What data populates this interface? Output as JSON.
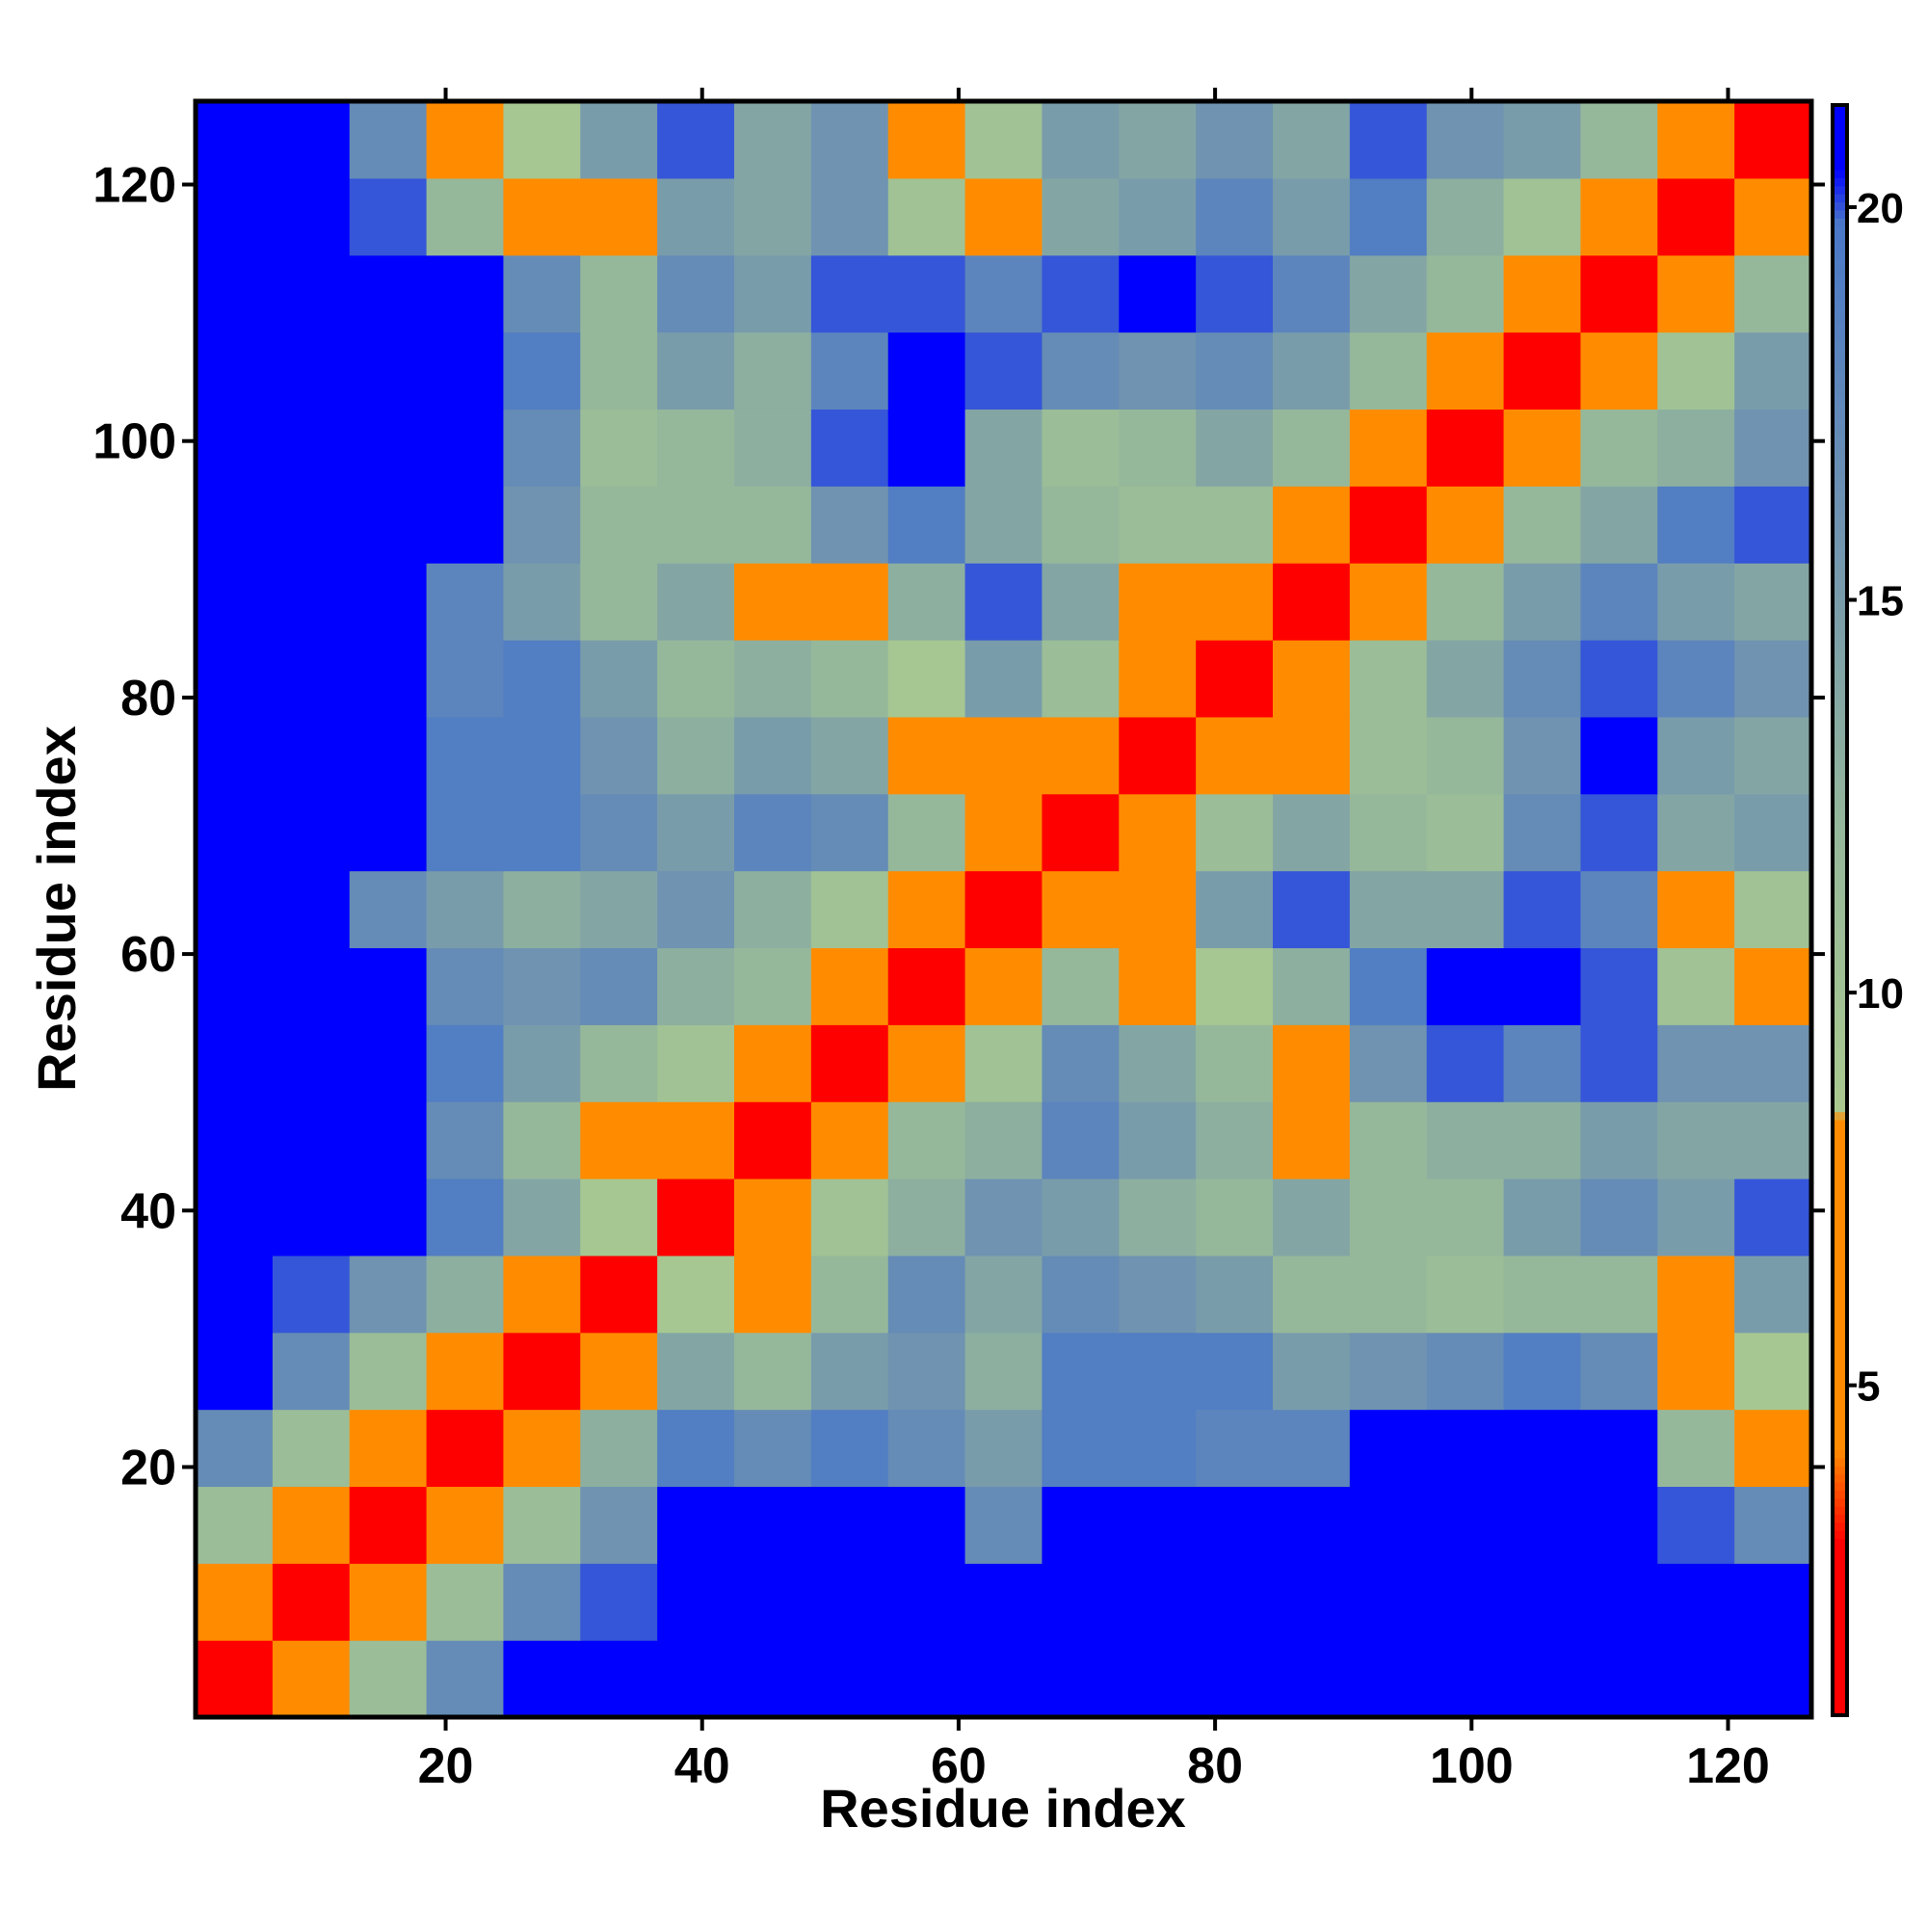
{
  "chart_data": {
    "type": "heatmap",
    "x_label": "Residue index",
    "y_label": "Residue index",
    "xbins": [
      0.5,
      6.5,
      12.5,
      18.5,
      24.5,
      30.5,
      36.5,
      42.5,
      48.5,
      54.5,
      60.5,
      66.5,
      72.5,
      78.5,
      84.5,
      90.5,
      96.5,
      102.5,
      108.5,
      114.5,
      120.5,
      126.5
    ],
    "ybins": [
      0.5,
      6.5,
      12.5,
      18.5,
      24.5,
      30.5,
      36.5,
      42.5,
      48.5,
      54.5,
      60.5,
      66.5,
      72.5,
      78.5,
      84.5,
      90.5,
      96.5,
      102.5,
      108.5,
      114.5,
      120.5,
      126.5
    ],
    "z": [
      [
        3,
        7,
        11,
        17,
        21,
        21,
        21,
        21,
        21,
        21,
        21,
        21,
        21,
        21,
        21,
        21,
        21,
        21,
        21,
        21,
        21
      ],
      [
        7,
        3,
        7,
        11,
        17,
        20,
        21,
        21,
        21,
        21,
        21,
        21,
        21,
        21,
        21,
        21,
        21,
        21,
        21,
        21,
        21
      ],
      [
        11,
        7,
        3,
        7,
        11,
        16,
        21,
        21,
        21,
        21,
        17,
        21,
        21,
        21,
        21,
        21,
        21,
        21,
        21,
        20,
        17
      ],
      [
        17,
        11,
        7,
        3,
        7,
        13,
        19,
        17,
        19,
        17,
        15,
        19,
        19,
        18,
        18,
        21,
        21,
        21,
        21,
        12,
        7
      ],
      [
        21,
        17,
        11,
        7,
        3,
        8,
        14,
        12,
        15,
        16,
        13,
        19,
        19,
        19,
        15,
        16,
        17,
        19,
        17,
        8,
        9
      ],
      [
        21,
        20,
        16,
        13,
        8,
        3,
        9,
        8,
        12,
        17,
        14,
        17,
        16,
        15,
        12,
        12,
        11,
        12,
        12,
        8,
        15
      ],
      [
        21,
        21,
        21,
        19,
        14,
        9,
        3,
        6,
        10,
        13,
        16,
        15,
        13,
        12,
        14,
        12,
        12,
        15,
        17,
        15,
        20
      ],
      [
        21,
        21,
        21,
        17,
        12,
        8,
        6,
        3,
        7,
        12,
        13,
        18,
        15,
        13,
        7,
        12,
        13,
        13,
        15,
        14,
        14
      ],
      [
        21,
        21,
        21,
        19,
        15,
        12,
        10,
        7,
        3,
        7,
        10,
        17,
        14,
        12,
        8,
        16,
        20,
        18,
        20,
        16,
        16
      ],
      [
        21,
        21,
        21,
        17,
        16,
        17,
        13,
        12,
        7,
        3,
        7,
        12,
        7,
        9,
        13,
        19,
        21,
        21,
        20,
        10,
        7
      ],
      [
        21,
        21,
        17,
        15,
        13,
        14,
        16,
        13,
        10,
        7,
        3,
        6,
        8,
        15,
        20,
        14,
        14,
        20,
        18,
        8,
        10
      ],
      [
        21,
        21,
        21,
        19,
        19,
        17,
        15,
        18,
        17,
        12,
        6,
        3,
        6,
        11,
        14,
        12,
        11,
        17,
        20,
        14,
        15
      ],
      [
        21,
        21,
        21,
        19,
        19,
        16,
        13,
        15,
        14,
        7,
        8,
        6,
        3,
        7,
        8,
        11,
        12,
        16,
        21,
        15,
        14
      ],
      [
        21,
        21,
        21,
        18,
        19,
        15,
        12,
        13,
        12,
        9,
        15,
        11,
        7,
        3,
        6,
        11,
        14,
        17,
        20,
        18,
        16
      ],
      [
        21,
        21,
        21,
        18,
        15,
        12,
        14,
        7,
        8,
        13,
        20,
        14,
        8,
        6,
        3,
        7,
        12,
        15,
        18,
        15,
        14
      ],
      [
        21,
        21,
        21,
        21,
        16,
        12,
        12,
        12,
        16,
        19,
        14,
        12,
        11,
        11,
        7,
        3,
        7,
        12,
        14,
        19,
        20
      ],
      [
        21,
        21,
        21,
        21,
        17,
        11,
        12,
        13,
        20,
        21,
        14,
        11,
        12,
        14,
        12,
        7,
        3,
        7,
        12,
        13,
        16
      ],
      [
        21,
        21,
        21,
        21,
        19,
        12,
        15,
        13,
        18,
        21,
        20,
        17,
        16,
        17,
        15,
        12,
        7,
        3,
        7,
        10,
        15
      ],
      [
        21,
        21,
        21,
        21,
        17,
        12,
        17,
        15,
        20,
        20,
        18,
        20,
        21,
        20,
        18,
        14,
        12,
        7,
        3,
        7,
        12
      ],
      [
        21,
        21,
        20,
        12,
        8,
        8,
        15,
        14,
        16,
        10,
        8,
        14,
        15,
        18,
        15,
        19,
        13,
        10,
        7,
        3,
        6
      ],
      [
        21,
        21,
        17,
        7,
        9,
        15,
        20,
        14,
        16,
        7,
        10,
        15,
        14,
        16,
        14,
        20,
        16,
        15,
        12,
        6,
        3
      ]
    ],
    "xlim": [
      0.5,
      126.5
    ],
    "ylim": [
      0.5,
      126.5
    ],
    "xticks": [
      20,
      40,
      60,
      80,
      100,
      120
    ],
    "yticks": [
      20,
      40,
      60,
      80,
      100,
      120
    ],
    "zlim": [
      0.8,
      21.3
    ],
    "zticks": [
      5,
      10,
      15,
      20
    ],
    "colorscale": [
      [
        0.8,
        "#ff0000"
      ],
      [
        3,
        "#ff0000"
      ],
      [
        4.2,
        "#ff8c00"
      ],
      [
        8.4,
        "#ff8c00"
      ],
      [
        8.5,
        "#a9c98f"
      ],
      [
        12,
        "#96b89a"
      ],
      [
        16,
        "#6f93b0"
      ],
      [
        19.8,
        "#4a78c8"
      ],
      [
        20.5,
        "#0000ff"
      ],
      [
        21.3,
        "#0000ff"
      ]
    ]
  }
}
